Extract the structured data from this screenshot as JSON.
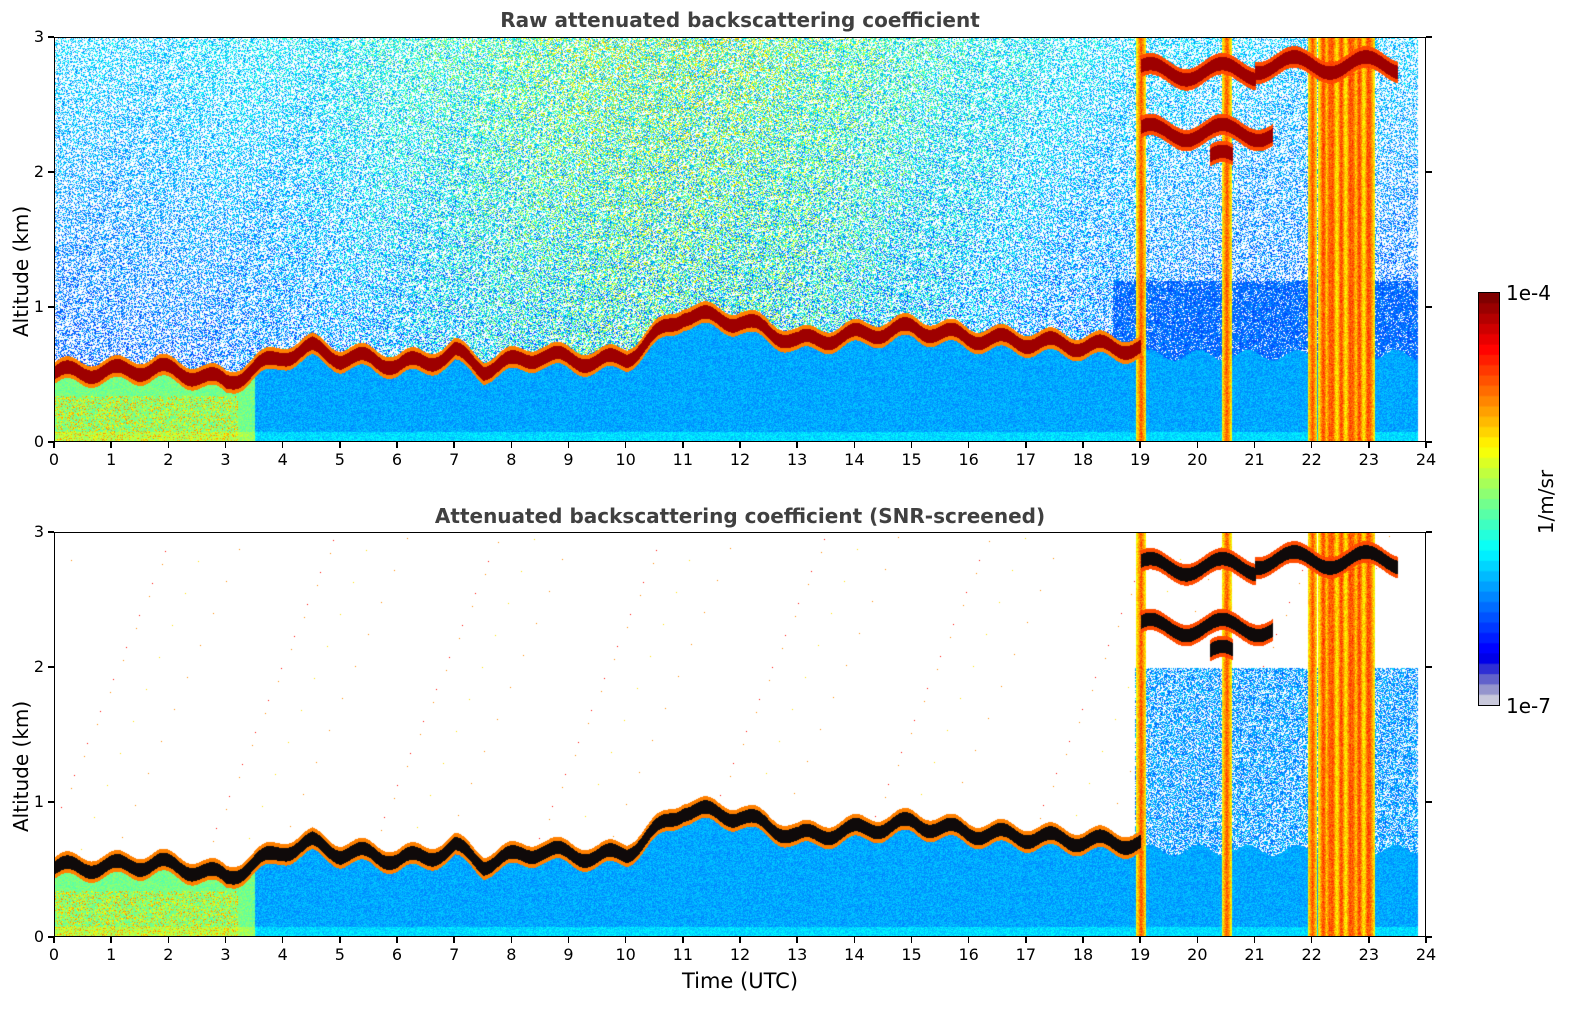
{
  "panels": [
    {
      "title": "Raw attenuated backscattering coefficient",
      "ylabel": "Altitude (km)",
      "xlabel": "",
      "mode": "raw"
    },
    {
      "title": "Attenuated backscattering coefficient (SNR-screened)",
      "ylabel": "Altitude (km)",
      "xlabel": "Time (UTC)",
      "mode": "screened"
    }
  ],
  "colorbar": {
    "max_label": "1e-4",
    "min_label": "1e-7",
    "unit": "1/m/sr",
    "colormap": "jet"
  },
  "chart_data": [
    {
      "type": "heatmap",
      "title": "Raw attenuated backscattering coefficient",
      "xlabel": "",
      "ylabel": "Altitude (km)",
      "xlim": [
        0,
        24
      ],
      "ylim": [
        0,
        3
      ],
      "x_ticks": [
        "0",
        "1",
        "2",
        "3",
        "4",
        "5",
        "6",
        "7",
        "8",
        "9",
        "10",
        "11",
        "12",
        "13",
        "14",
        "15",
        "16",
        "17",
        "18",
        "19",
        "20",
        "21",
        "22",
        "23",
        "24"
      ],
      "y_ticks": [
        "0",
        "1",
        "2",
        "3"
      ],
      "color_scale": "log",
      "color_range": [
        "1e-7",
        "1e-4"
      ],
      "boundary_layer_top_km": {
        "time_utc": [
          0,
          1,
          1.8,
          2.5,
          3,
          3.5,
          4,
          4.5,
          5,
          5.5,
          6,
          6.5,
          7,
          7.5,
          8,
          8.5,
          9,
          9.5,
          10,
          11,
          12,
          13,
          14,
          15,
          16,
          17,
          18,
          19
        ],
        "altitude_km": [
          0.52,
          0.53,
          0.55,
          0.5,
          0.45,
          0.55,
          0.65,
          0.7,
          0.63,
          0.62,
          0.58,
          0.6,
          0.67,
          0.55,
          0.6,
          0.65,
          0.62,
          0.6,
          0.63,
          0.95,
          0.9,
          0.75,
          0.8,
          0.85,
          0.78,
          0.75,
          0.72,
          0.7
        ]
      },
      "cloud_layers": [
        {
          "time_start": 19.0,
          "time_end": 21.0,
          "altitude_km": 2.75
        },
        {
          "time_start": 21.0,
          "time_end": 23.5,
          "altitude_km": 2.8
        },
        {
          "time_start": 19.0,
          "time_end": 21.3,
          "altitude_km": 2.3
        },
        {
          "time_start": 20.2,
          "time_end": 20.6,
          "altitude_km": 2.1
        }
      ],
      "precipitation_times_utc": [
        19.0,
        20.5,
        22.0,
        22.3,
        22.7,
        23.0
      ]
    },
    {
      "type": "heatmap",
      "title": "Attenuated backscattering coefficient (SNR-screened)",
      "xlabel": "Time (UTC)",
      "ylabel": "Altitude (km)",
      "xlim": [
        0,
        24
      ],
      "ylim": [
        0,
        3
      ],
      "x_ticks": [
        "0",
        "1",
        "2",
        "3",
        "4",
        "5",
        "6",
        "7",
        "8",
        "9",
        "10",
        "11",
        "12",
        "13",
        "14",
        "15",
        "16",
        "17",
        "18",
        "19",
        "20",
        "21",
        "22",
        "23",
        "24"
      ],
      "y_ticks": [
        "0",
        "1",
        "2",
        "3"
      ],
      "color_scale": "log",
      "color_range": [
        "1e-7",
        "1e-4"
      ]
    }
  ]
}
